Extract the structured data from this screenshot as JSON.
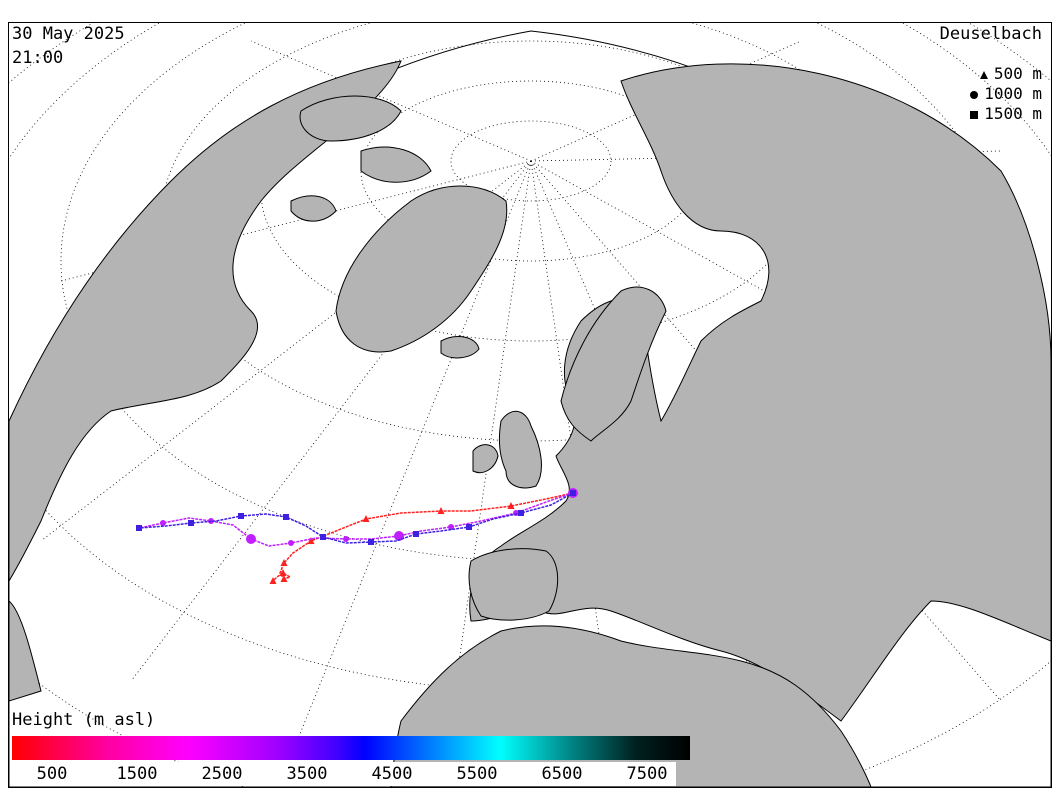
{
  "header": {
    "date": "30 May 2025",
    "time": "21:00",
    "station": "Deuselbach"
  },
  "legend": {
    "items": [
      {
        "symbol": "triangle",
        "label": "500 m"
      },
      {
        "symbol": "circle",
        "label": "1000 m"
      },
      {
        "symbol": "square",
        "label": "1500 m"
      }
    ]
  },
  "colorbar": {
    "title": "Height (m asl)",
    "ticks": [
      "500",
      "1500",
      "2500",
      "3500",
      "4500",
      "5500",
      "6500",
      "7500"
    ],
    "colors": [
      "#ff0000",
      "#ff00a0",
      "#ff00ff",
      "#a000ff",
      "#4000ff",
      "#0000ff",
      "#0080ff",
      "#00ffff",
      "#008a8a",
      "#000000"
    ]
  },
  "map": {
    "land_color": "#b4b4b4",
    "sea_color": "#ffffff",
    "grid": "dotted lat/lon"
  },
  "trajectories": [
    {
      "name": "500 m",
      "symbol": "triangle",
      "color": "#ff2020"
    },
    {
      "name": "1000 m",
      "symbol": "circle",
      "color": "#c020ff"
    },
    {
      "name": "1500 m",
      "symbol": "square",
      "color": "#4020e0"
    }
  ]
}
